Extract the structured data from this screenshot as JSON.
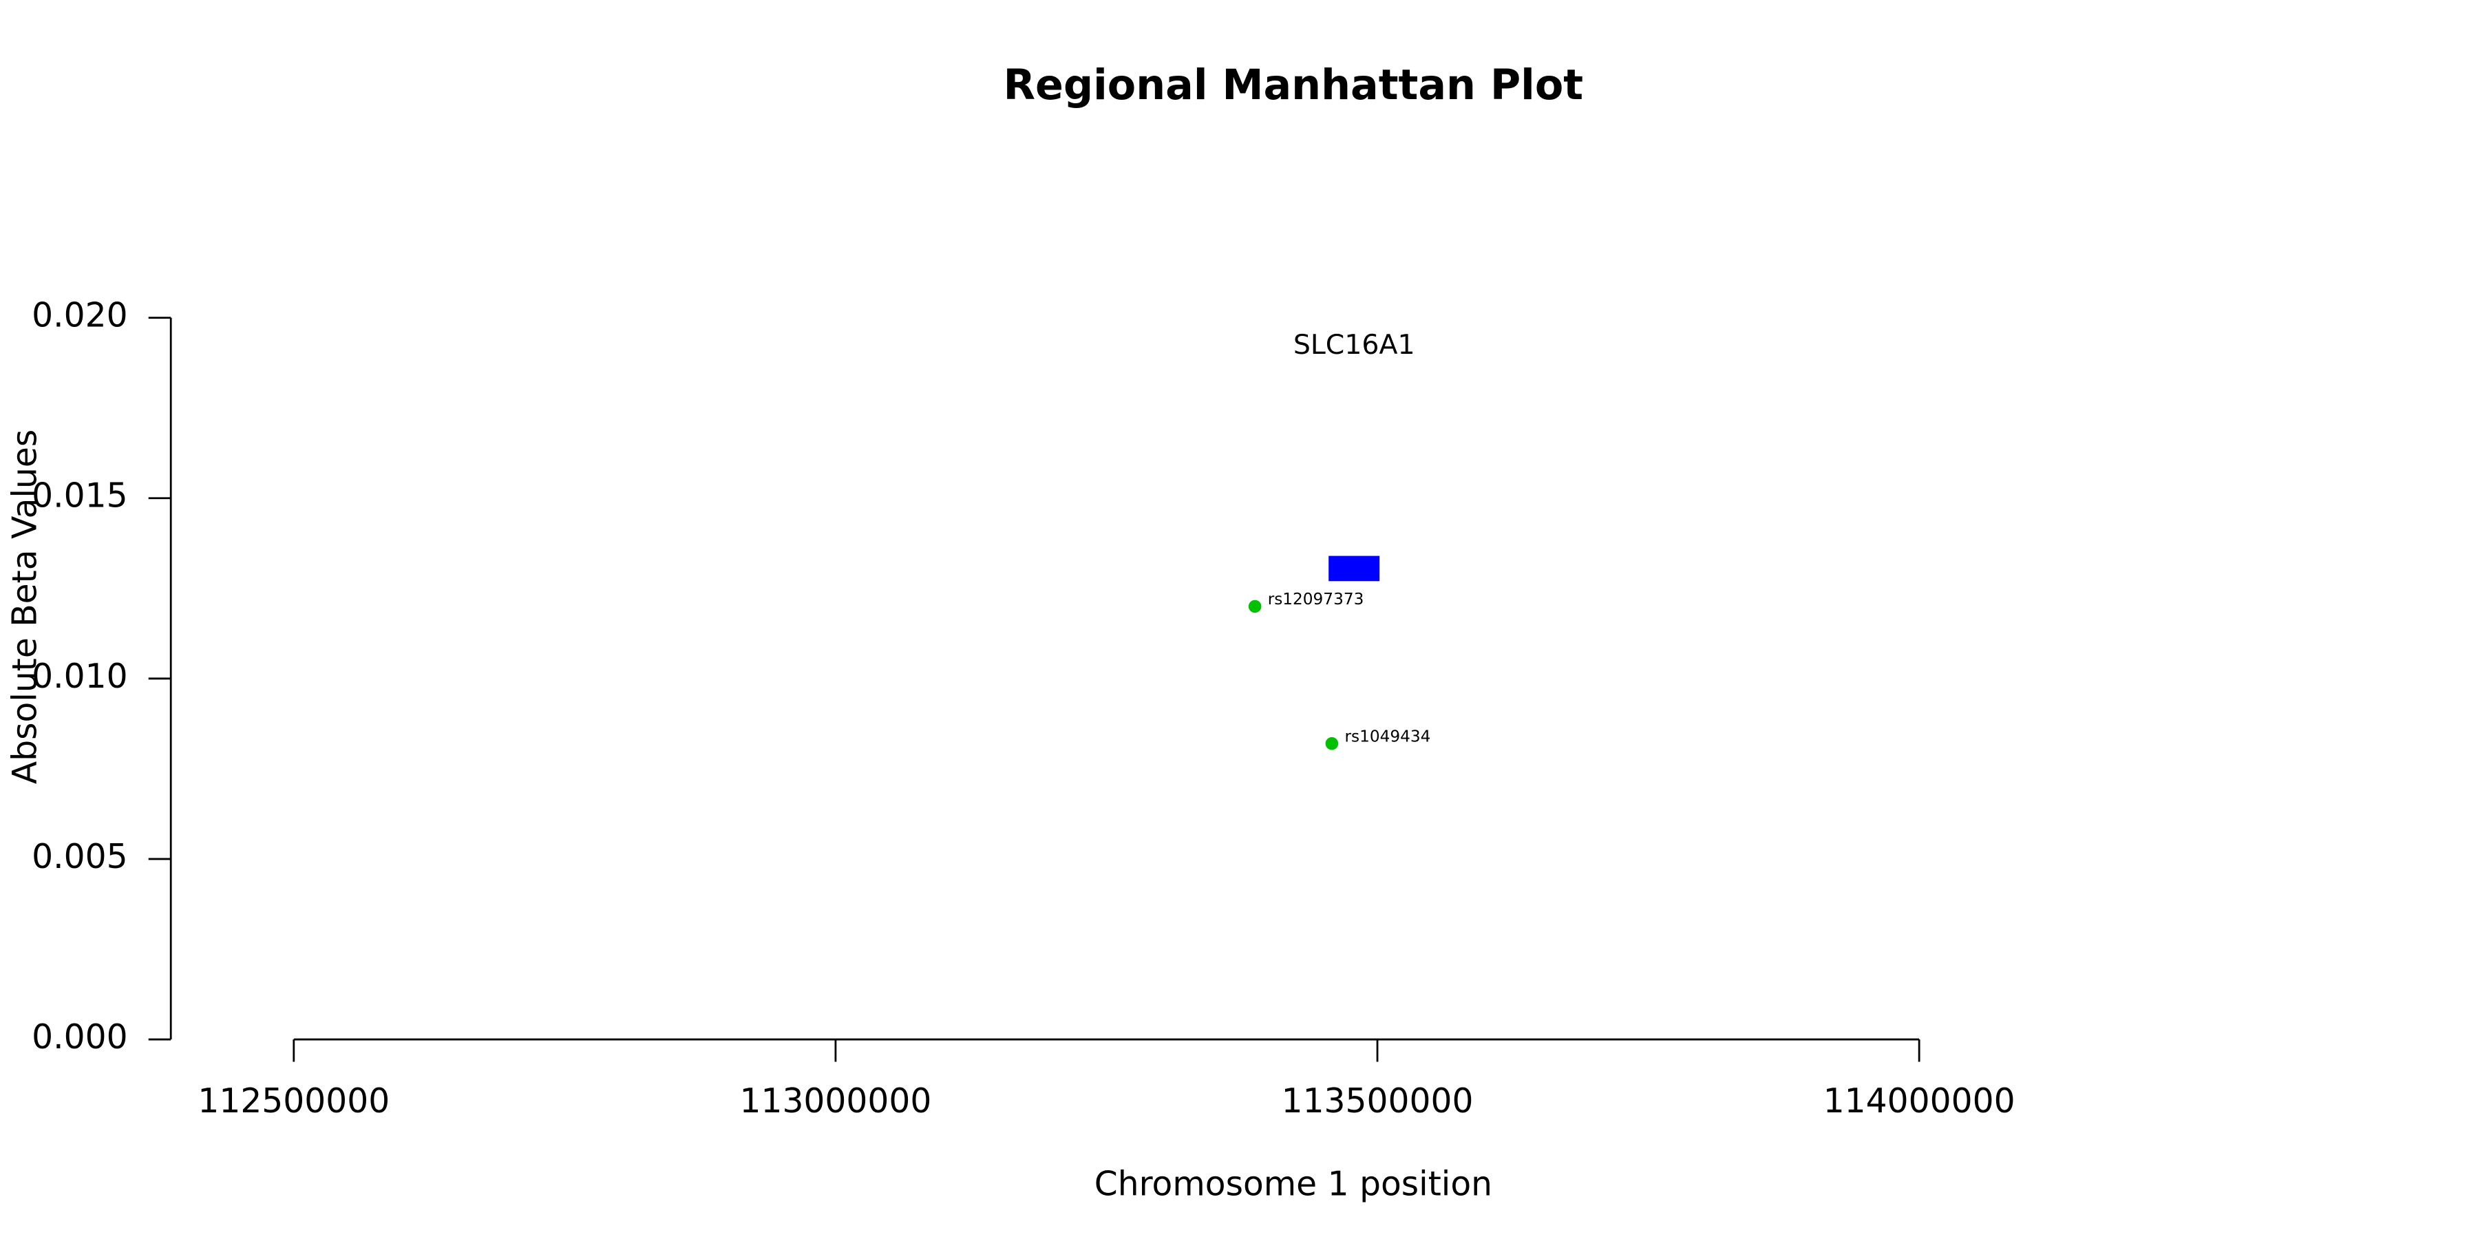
{
  "chart_data": {
    "type": "scatter",
    "title": "Regional Manhattan Plot",
    "x_label": "Chromosome 1 position",
    "y_label": "Absolute Beta Values",
    "x": [
      113387000,
      113458000
    ],
    "values": [
      0.012,
      0.0082
    ],
    "point_labels": [
      "rs12097373",
      "rs1049434"
    ],
    "color": "#00c000",
    "genes": [
      {
        "name": "SLC16A1",
        "start": 113455000,
        "end": 113502000,
        "y_bottom": 0.0127,
        "y_top": 0.0134,
        "color": "#0000ff"
      }
    ],
    "xlim": [
      112500000,
      114000000
    ],
    "xticks": [
      112500000,
      113000000,
      113500000,
      114000000
    ],
    "ylim": [
      0,
      0.02
    ],
    "yticks": [
      {
        "value": 0,
        "label": "0.000"
      },
      {
        "value": 0.005,
        "label": "0.005"
      },
      {
        "value": 0.01,
        "label": "0.010"
      },
      {
        "value": 0.015,
        "label": "0.015"
      },
      {
        "value": 0.02,
        "label": "0.020"
      }
    ],
    "grid": false
  }
}
